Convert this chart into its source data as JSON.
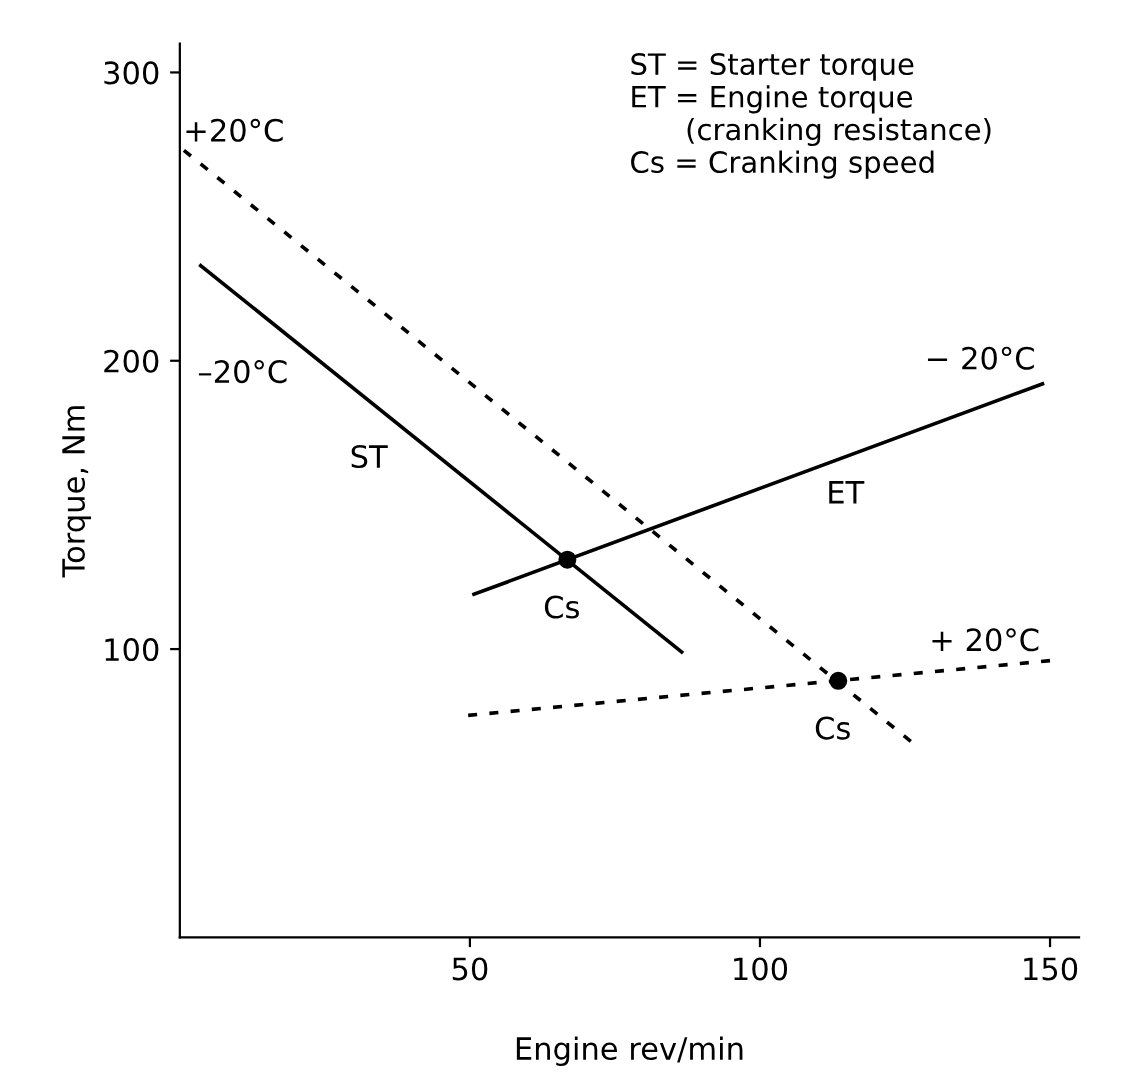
{
  "chart_data": {
    "type": "line",
    "xlabel": "Engine rev/min",
    "ylabel": "Torque, Nm",
    "xlim": [
      0,
      155
    ],
    "ylim": [
      0,
      310
    ],
    "xticks": [
      50,
      100,
      150
    ],
    "yticks": [
      100,
      200,
      300
    ],
    "grid": false,
    "legend": false,
    "series": [
      {
        "color": "#000000",
        "line_style": "solid",
        "marker": "none",
        "x": [
          3.6,
          86.5
        ],
        "values": [
          233,
          99
        ]
      },
      {
        "color": "#000000",
        "line_style": "solid",
        "marker": "none",
        "x": [
          50.7,
          148.7
        ],
        "values": [
          119,
          192
        ]
      },
      {
        "color": "#000000",
        "line_style": "dashed",
        "marker": "none",
        "x": [
          0.7,
          126
        ],
        "values": [
          273,
          68
        ]
      },
      {
        "color": "#000000",
        "line_style": "dashed",
        "marker": "none",
        "x": [
          49.7,
          150
        ],
        "values": [
          77,
          96
        ]
      },
      {
        "type": "scatter",
        "color": "#000000",
        "marker": "circle",
        "x": [
          66.8,
          113.5
        ],
        "values": [
          131,
          89
        ]
      }
    ],
    "annotations": [
      "+20°C",
      "–20°C",
      "ST",
      "ET",
      "− 20°C",
      "+ 20°C",
      {
        "text": "Cs",
        "x": 66.8,
        "y": 131
      },
      {
        "text": "Cs",
        "x": 113.5,
        "y": 89
      },
      "ST = Starter torque",
      "ET = Engine torque\n      (cranking resistance)",
      "Cs = Cranking speed"
    ]
  }
}
